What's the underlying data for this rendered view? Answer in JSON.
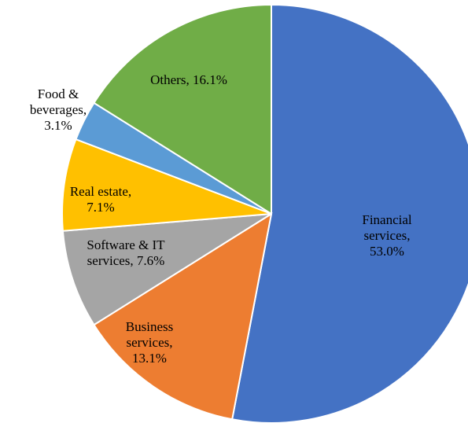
{
  "chart_data": {
    "type": "pie",
    "categories": [
      "Financial services",
      "Business services",
      "Software & IT services",
      "Real estate",
      "Food & beverages",
      "Others"
    ],
    "values": [
      53.0,
      13.1,
      7.6,
      7.1,
      3.1,
      16.1
    ],
    "value_labels": [
      "Financial services, 53.0%",
      "Business services, 13.1%",
      "Software & IT services, 7.6%",
      "Real estate, 7.1%",
      "Food & beverages, 3.1%",
      "Others, 16.1%"
    ],
    "colors": [
      "#4472c4",
      "#ed7d31",
      "#a5a5a5",
      "#ffc000",
      "#5b9bd5",
      "#70ad47"
    ]
  }
}
